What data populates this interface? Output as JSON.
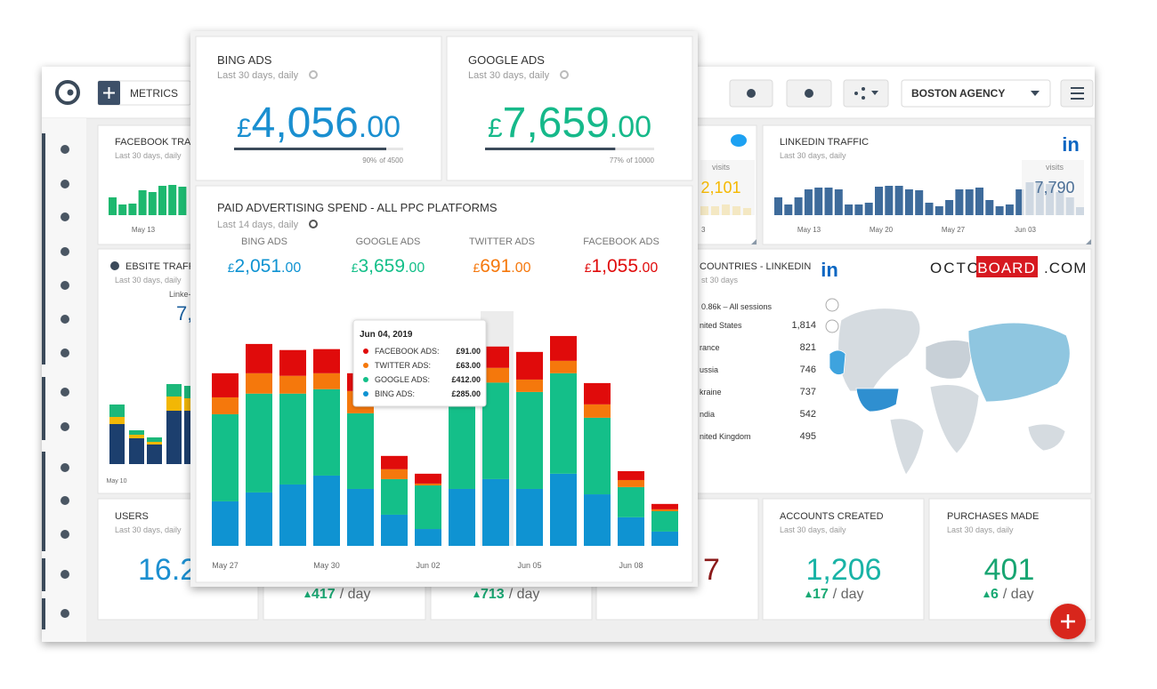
{
  "toolbar": {
    "add_button": "METRICS",
    "account": "BOSTON AGENCY"
  },
  "cards": {
    "facebook_traffic": {
      "title": "FACEBOOK TRA",
      "subtitle": "Last 30 days, daily",
      "x_label": "May 13",
      "values": [
        20,
        12,
        13,
        28,
        26,
        33,
        34,
        32
      ],
      "ylim": [
        0,
        40
      ],
      "color": "#1db86f"
    },
    "twitter_traffic": {
      "metric": "visits",
      "value": "2,101",
      "x_label": "3",
      "values": [
        10,
        10,
        12,
        10,
        8
      ],
      "ylim": [
        0,
        40
      ],
      "color": "#f5b800"
    },
    "linkedin_traffic": {
      "title": "LINKEDIN TRAFFIC",
      "subtitle": "Last 30 days, daily",
      "logo": "in",
      "metric": "visits",
      "value": "7,790",
      "x_labels": [
        "May 13",
        "May 20",
        "May 27",
        "Jun 03"
      ],
      "values": [
        20,
        12,
        20,
        29,
        31,
        31,
        29,
        12,
        12,
        14,
        32,
        33,
        33,
        29,
        28,
        14,
        10,
        17,
        29,
        29,
        31,
        17,
        10,
        12,
        29,
        37,
        36,
        35,
        26,
        20,
        9
      ],
      "ylim": [
        0,
        40
      ],
      "color": "#3e6b9b"
    },
    "website_traffic": {
      "title": "EBSITE TRAFF",
      "subtitle": "Last 30 days, daily",
      "source": "Linke-",
      "value": "7,",
      "x_label": "May 10",
      "ylim": [
        0,
        100
      ],
      "series": [
        {
          "color": "#1c3f6e",
          "values": [
            45,
            29,
            22,
            60,
            60
          ]
        },
        {
          "color": "#f2b705",
          "values": [
            8,
            4,
            3,
            16,
            14
          ]
        },
        {
          "color": "#1cb87a",
          "values": [
            14,
            5,
            5,
            14,
            14
          ]
        }
      ]
    },
    "countries": {
      "title": "COUNTRIES - LINKEDIN",
      "subtitle": "st 30 days",
      "logo": "in",
      "total": "0.86k – All sessions",
      "rows": [
        [
          "nited States",
          "1,814"
        ],
        [
          "rance",
          "821"
        ],
        [
          "ussia",
          "746"
        ],
        [
          "kraine",
          "737"
        ],
        [
          "ndia",
          "542"
        ],
        [
          "nited Kingdom",
          "495"
        ]
      ]
    },
    "brand": {
      "left": "OCTO",
      "box": "BOARD",
      "right": ".COM"
    },
    "users": {
      "title": "USERS",
      "subtitle": "Last 30 days, daily",
      "value": "16.2"
    },
    "metric_2": {
      "change": "417",
      "unit": "/ day"
    },
    "metric_3": {
      "change": "713",
      "unit": "/ day"
    },
    "metric_4": {
      "value": "7"
    },
    "accounts_created": {
      "title": "ACCOUNTS CREATED",
      "subtitle": "Last 30 days, daily",
      "value": "1,206",
      "change": "17",
      "unit": "/ day"
    },
    "purchases_made": {
      "title": "PURCHASES MADE",
      "subtitle": "Last 30 days, daily",
      "value": "401",
      "change": "6",
      "unit": "/ day"
    }
  },
  "overlay": {
    "bing": {
      "title": "BING ADS",
      "subtitle": "Last 30 days, daily",
      "color": "#1a8fd0",
      "amount": {
        "currency": "£",
        "whole": "4,056",
        "decimals": ".00"
      },
      "progress": {
        "percent": 90,
        "percent_label": "90%",
        "target_label": "of 4500"
      }
    },
    "google": {
      "title": "GOOGLE ADS",
      "subtitle": "Last 30 days, daily",
      "color": "#16b98a",
      "amount": {
        "currency": "£",
        "whole": "7,659",
        "decimals": ".00"
      },
      "progress": {
        "percent": 77,
        "percent_label": "77%",
        "target_label": "of 10000"
      }
    },
    "ppc": {
      "title": "PAID ADVERTISING SPEND - ALL PPC PLATFORMS",
      "subtitle": "Last 14 days, daily",
      "totals": [
        {
          "currency": "£",
          "whole": "2,051",
          "decimals": ".00"
        },
        {
          "currency": "£",
          "whole": "3,659",
          "decimals": ".00"
        },
        {
          "currency": "£",
          "whole": "691",
          "decimals": ".00"
        },
        {
          "currency": "£",
          "whole": "1,055",
          "decimals": ".00"
        }
      ],
      "tooltip": {
        "date": "Jun 04, 2019",
        "rows": [
          {
            "label": "FACEBOOK ADS:",
            "value": "£91.00"
          },
          {
            "label": "TWITTER ADS:",
            "value": "£63.00"
          },
          {
            "label": "GOOGLE ADS:",
            "value": "£412.00"
          },
          {
            "label": "BING ADS:",
            "value": "£285.00"
          }
        ]
      }
    }
  },
  "chart_data": {
    "type": "bar",
    "stacked": true,
    "categories": [
      "May 27",
      null,
      null,
      "May 30",
      null,
      null,
      "Jun 02",
      null,
      null,
      "Jun 05",
      null,
      null,
      "Jun 08",
      null
    ],
    "ylim": [
      0,
      1040
    ],
    "series": [
      {
        "name": "BING ADS",
        "color": "#0f93d2",
        "values": [
          190,
          228,
          262,
          300,
          243,
          133,
          72,
          243,
          285,
          243,
          308,
          220,
          122,
          61
        ]
      },
      {
        "name": "GOOGLE ADS",
        "color": "#14bf89",
        "values": [
          372,
          422,
          388,
          369,
          323,
          152,
          186,
          380,
          412,
          414,
          429,
          327,
          129,
          87
        ]
      },
      {
        "name": "TWITTER ADS",
        "color": "#f5780c",
        "values": [
          72,
          87,
          76,
          68,
          95,
          42,
          8,
          57,
          63,
          53,
          53,
          57,
          30,
          8
        ]
      },
      {
        "name": "FACEBOOK ADS",
        "color": "#e00b0b",
        "values": [
          103,
          125,
          110,
          103,
          76,
          57,
          42,
          57,
          91,
          118,
          106,
          91,
          38,
          23
        ]
      }
    ]
  }
}
